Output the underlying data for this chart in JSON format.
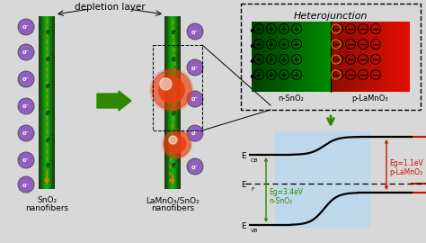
{
  "bg_color": "#d8d8d8",
  "depletion_label": "depletion layer",
  "fiber1_label_line1": "SnO₂",
  "fiber1_label_line2": "nanofibers",
  "fiber2_label_line1": "LaMnO₃/SnO₂",
  "fiber2_label_line2": "nanofibers",
  "hetero_title": "Heterojunction",
  "hetero_n_label": "n-SnO₂",
  "hetero_p_label": "p-LaMnO₃",
  "green_color": "#2d8a00",
  "red_color": "#cc1100",
  "fiber_green_light": "#55cc22",
  "fiber_green_mid": "#2a8010",
  "fiber_green_dark": "#0f5005",
  "orange_color": "#e87800",
  "purple_color": "#9060c0",
  "red_sphere": "#e84010"
}
